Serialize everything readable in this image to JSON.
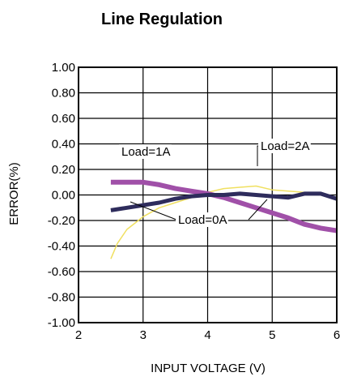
{
  "chart_data": {
    "type": "line",
    "title": "Line Regulation",
    "xlabel": "INPUT VOLTAGE (V)",
    "ylabel": "ERROR(%)",
    "xlim": [
      2,
      6
    ],
    "ylim": [
      -1.0,
      1.0
    ],
    "x_ticks": [
      "2",
      "3",
      "4",
      "5",
      "6"
    ],
    "y_ticks": [
      "1.00",
      "0.80",
      "0.60",
      "0.40",
      "0.20",
      "0.00",
      "-0.20",
      "-0.40",
      "-0.60",
      "-0.80",
      "-1.00"
    ],
    "grid": true,
    "series": [
      {
        "name": "Load=1A",
        "color": "#a050a8",
        "x": [
          2.5,
          2.75,
          3.0,
          3.25,
          3.5,
          3.75,
          4.0,
          4.25,
          4.5,
          4.75,
          5.0,
          5.25,
          5.5,
          5.75,
          6.0
        ],
        "y": [
          0.1,
          0.1,
          0.1,
          0.08,
          0.05,
          0.03,
          0.01,
          -0.02,
          -0.06,
          -0.1,
          -0.14,
          -0.18,
          -0.23,
          -0.26,
          -0.28
        ]
      },
      {
        "name": "Load=2A",
        "color": "#2e2c5c",
        "x": [
          2.5,
          2.75,
          3.0,
          3.25,
          3.5,
          3.75,
          4.0,
          4.25,
          4.5,
          4.75,
          5.0,
          5.25,
          5.5,
          5.75,
          6.0
        ],
        "y": [
          -0.12,
          -0.1,
          -0.08,
          -0.06,
          -0.03,
          -0.01,
          0.0,
          0.0,
          0.01,
          0.0,
          -0.01,
          -0.02,
          0.01,
          0.01,
          -0.03
        ]
      },
      {
        "name": "Load=0A",
        "color": "#f0e060",
        "x": [
          2.5,
          2.6,
          2.75,
          2.9,
          3.0,
          3.25,
          3.5,
          3.75,
          4.0,
          4.25,
          4.5,
          4.75,
          5.0,
          5.25,
          5.5,
          5.75,
          6.0
        ],
        "y": [
          -0.5,
          -0.38,
          -0.27,
          -0.21,
          -0.17,
          -0.1,
          -0.06,
          -0.02,
          0.02,
          0.05,
          0.06,
          0.07,
          0.04,
          0.03,
          0.02,
          0.0,
          -0.02
        ]
      }
    ],
    "annotations": [
      {
        "text": "Load=1A"
      },
      {
        "text": "Load=2A"
      },
      {
        "text": "Load=0A"
      }
    ]
  }
}
